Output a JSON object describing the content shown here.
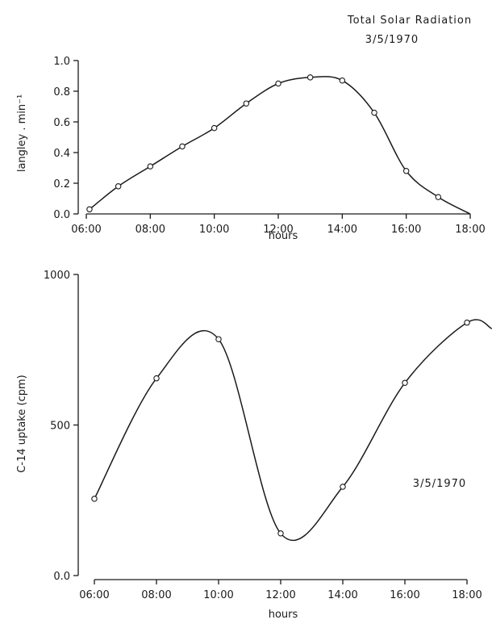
{
  "chart_data": [
    {
      "type": "line",
      "title": "Total Solar Radiation",
      "subtitle": "3/5/1970",
      "xlabel": "hours",
      "ylabel": "langley . min⁻¹",
      "x_tick_labels": [
        "06:00",
        "08:00",
        "10:00",
        "12:00",
        "14:00",
        "16:00",
        "18:00"
      ],
      "y_tick_labels": [
        "0.0",
        "0.2",
        "0.4",
        "0.6",
        "0.8",
        "1.0"
      ],
      "xlim": [
        6,
        18
      ],
      "ylim": [
        0,
        1.0
      ],
      "grid": false,
      "series": [
        {
          "x": [
            6.1,
            7,
            8,
            9,
            10,
            11,
            12,
            13,
            14,
            15,
            16,
            17,
            18
          ],
          "y": [
            0.03,
            0.18,
            0.31,
            0.44,
            0.56,
            0.72,
            0.85,
            0.89,
            0.87,
            0.66,
            0.28,
            0.11,
            0.0
          ],
          "markers": [
            true,
            true,
            true,
            true,
            true,
            true,
            true,
            true,
            true,
            true,
            true,
            true,
            false
          ]
        }
      ]
    },
    {
      "type": "line",
      "xlabel": "hours",
      "ylabel": "C-14 uptake (cpm)",
      "annotation": "3/5/1970",
      "x_tick_labels": [
        "06:00",
        "08:00",
        "10:00",
        "12:00",
        "14:00",
        "16:00",
        "18:00"
      ],
      "y_tick_labels": [
        "0.0",
        "500",
        "1000"
      ],
      "xlim": [
        6,
        18
      ],
      "ylim": [
        0,
        1000
      ],
      "grid": false,
      "series": [
        {
          "x": [
            6,
            8,
            10,
            12,
            14,
            16,
            18
          ],
          "y": [
            255,
            655,
            785,
            140,
            295,
            640,
            840
          ],
          "extends_to": {
            "x": 18.8,
            "y": 820
          }
        }
      ]
    }
  ]
}
